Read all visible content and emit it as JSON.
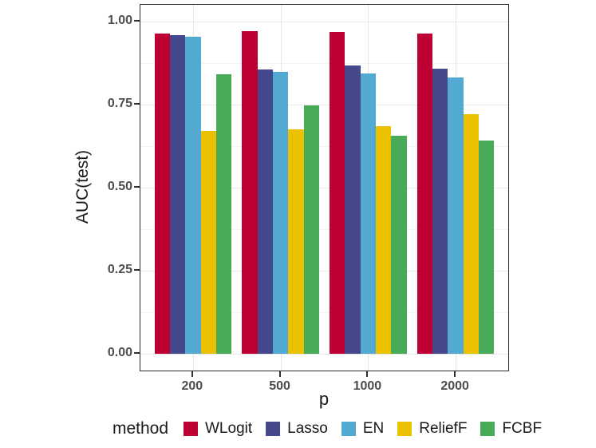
{
  "figure": {
    "background_color": "#ffffff",
    "panel_border_color": "#2b2b2b",
    "grid_major_color": "#e7e7e7",
    "grid_minor_color": "#f4f4f4",
    "tick_color": "#333333",
    "tick_label_color": "#4d4d4d",
    "title_color": "#1a1a1a"
  },
  "chart_data": {
    "type": "bar",
    "title": "",
    "xlabel": "p",
    "ylabel": "AUC(test)",
    "categories": [
      "200",
      "500",
      "1000",
      "2000"
    ],
    "series": [
      {
        "name": "WLogit",
        "color": "#be0032",
        "values": [
          0.965,
          0.97,
          0.968,
          0.964
        ]
      },
      {
        "name": "Lasso",
        "color": "#45488c",
        "values": [
          0.958,
          0.856,
          0.868,
          0.859
        ]
      },
      {
        "name": "EN",
        "color": "#52a9d1",
        "values": [
          0.955,
          0.848,
          0.844,
          0.832
        ]
      },
      {
        "name": "ReliefF",
        "color": "#ebc000",
        "values": [
          0.67,
          0.675,
          0.685,
          0.72
        ]
      },
      {
        "name": "FCBF",
        "color": "#47ab57",
        "values": [
          0.842,
          0.748,
          0.656,
          0.643
        ]
      }
    ],
    "ylim": [
      0.0,
      1.0
    ],
    "yticks": [
      0.0,
      0.25,
      0.5,
      0.75,
      1.0
    ],
    "ytick_labels": [
      "0.00",
      "0.25",
      "0.50",
      "0.75",
      "1.00"
    ],
    "yticks_minor": [
      0.125,
      0.375,
      0.625,
      0.875
    ],
    "legend_title": "method",
    "legend_position": "bottom",
    "grid": true
  }
}
